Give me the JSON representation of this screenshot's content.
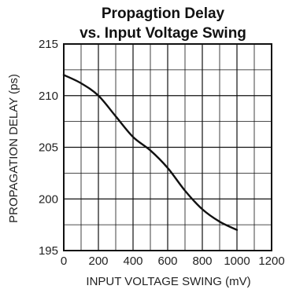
{
  "chart_data": {
    "type": "line",
    "title": "Propagtion Delay",
    "subtitle": "vs. Input Voltage Swing",
    "xlabel": "INPUT VOLTAGE SWING (mV)",
    "ylabel": "PROPAGATION DELAY (ps)",
    "xlim": [
      0,
      1200
    ],
    "ylim": [
      195,
      215
    ],
    "grid": true,
    "x_ticks": [
      "0",
      "200",
      "400",
      "600",
      "800",
      "1000",
      "1200"
    ],
    "y_ticks": [
      "195",
      "200",
      "205",
      "210",
      "215"
    ],
    "series": [
      {
        "x": [
          0,
          100,
          200,
          300,
          400,
          500,
          600,
          700,
          800,
          900,
          1000
        ],
        "values": [
          212,
          211.2,
          210,
          208,
          206,
          204.7,
          203,
          200.8,
          199,
          197.8,
          197
        ]
      }
    ]
  }
}
